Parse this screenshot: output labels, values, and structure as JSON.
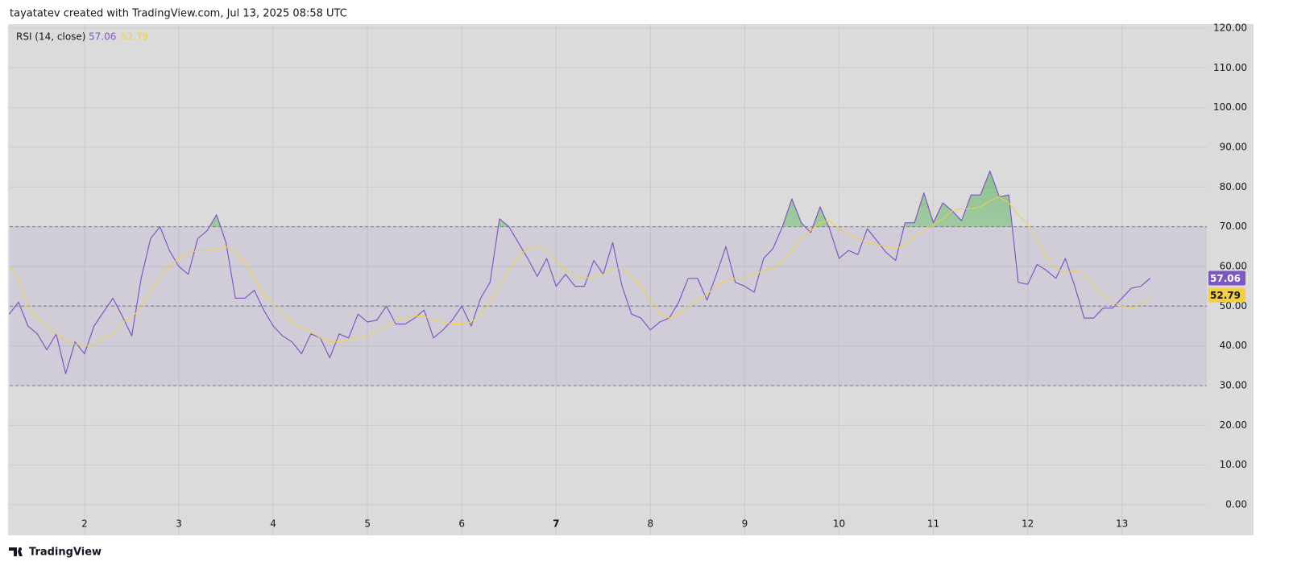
{
  "header": "tayatatev created with TradingView.com, Jul 13, 2025 08:58 UTC",
  "footer": "TradingView",
  "chart_data": {
    "type": "line",
    "legend_title": "RSI (14, close)",
    "x": [
      1.2,
      1.3,
      1.4,
      1.5,
      1.6,
      1.7,
      1.8,
      1.9,
      2.0,
      2.1,
      2.2,
      2.3,
      2.4,
      2.5,
      2.6,
      2.7,
      2.8,
      2.9,
      3.0,
      3.1,
      3.2,
      3.3,
      3.4,
      3.5,
      3.6,
      3.7,
      3.8,
      3.9,
      4.0,
      4.1,
      4.2,
      4.3,
      4.4,
      4.5,
      4.6,
      4.7,
      4.8,
      4.9,
      5.0,
      5.1,
      5.2,
      5.3,
      5.4,
      5.5,
      5.6,
      5.7,
      5.8,
      5.9,
      6.0,
      6.1,
      6.2,
      6.3,
      6.4,
      6.5,
      6.6,
      6.7,
      6.8,
      6.9,
      7.0,
      7.1,
      7.2,
      7.3,
      7.4,
      7.5,
      7.6,
      7.7,
      7.8,
      7.9,
      8.0,
      8.1,
      8.2,
      8.3,
      8.4,
      8.5,
      8.6,
      8.7,
      8.8,
      8.9,
      9.0,
      9.1,
      9.2,
      9.3,
      9.4,
      9.5,
      9.6,
      9.7,
      9.8,
      9.9,
      10.0,
      10.1,
      10.2,
      10.3,
      10.4,
      10.5,
      10.6,
      10.7,
      10.8,
      10.9,
      11.0,
      11.1,
      11.2,
      11.3,
      11.4,
      11.5,
      11.6,
      11.7,
      11.8,
      11.9,
      12.0,
      12.1,
      12.2,
      12.3,
      12.4,
      12.5,
      12.6,
      12.7,
      12.8,
      12.9,
      13.0,
      13.1,
      13.2,
      13.3
    ],
    "series": [
      {
        "color": "#7e57c2",
        "values": [
          48,
          51,
          45,
          43,
          39,
          43,
          33,
          41,
          38,
          45,
          48.5,
          52,
          47.5,
          42.5,
          57,
          67,
          70,
          64,
          60,
          58,
          67,
          69,
          73,
          66,
          52,
          52,
          54,
          49,
          45,
          42.5,
          41,
          38,
          43,
          42,
          37,
          43,
          42,
          48,
          46,
          46.5,
          50,
          45.5,
          45.5,
          47,
          49,
          42,
          44,
          46.5,
          50,
          45,
          52,
          56,
          72,
          70,
          66,
          62,
          57.5,
          62,
          55,
          58,
          55,
          55,
          61.5,
          58,
          66,
          55,
          48,
          47,
          44,
          46,
          47,
          51,
          57,
          57,
          51.5,
          58,
          65,
          56,
          55,
          53.5,
          62,
          64.5,
          70,
          77,
          71,
          68.5,
          75,
          69.5,
          62,
          64,
          63,
          69.5,
          66.5,
          63.5,
          61.5,
          71,
          71,
          78.5,
          71,
          76,
          74,
          71.5,
          78,
          78,
          84,
          77.5,
          78,
          56,
          55.5,
          60.5,
          59,
          57,
          62,
          55,
          47,
          47,
          49.5,
          49.5,
          52,
          54.5,
          55,
          57.06
        ]
      },
      {
        "color": "#f4d03f",
        "values": [
          60,
          57,
          50,
          47,
          45,
          43,
          41.5,
          40.5,
          40,
          40.5,
          42,
          43,
          46,
          47,
          50,
          54,
          57.5,
          60,
          62,
          63.5,
          64,
          64,
          64.5,
          65,
          63.5,
          61,
          57,
          53,
          50.5,
          48,
          46,
          44.5,
          43.5,
          42,
          41,
          41,
          41.5,
          42,
          42.5,
          43.5,
          45,
          46.5,
          47,
          47.5,
          47.5,
          46.5,
          46,
          45.5,
          45.5,
          46,
          48,
          51,
          55,
          59,
          62.5,
          64.5,
          65,
          64,
          61.5,
          59,
          57.5,
          57,
          57.5,
          58,
          59.5,
          59.5,
          57.5,
          55,
          51.5,
          48,
          47,
          48,
          50,
          51.5,
          53,
          55,
          56.5,
          57,
          57,
          58,
          59,
          59.5,
          61,
          64,
          67,
          69,
          71,
          71.5,
          69.5,
          68,
          67,
          66,
          65.5,
          65,
          64.5,
          65.5,
          67.5,
          69,
          70.5,
          72,
          74,
          74.5,
          74.5,
          75,
          76.5,
          77.5,
          76,
          73,
          70.5,
          66.5,
          62.5,
          59.5,
          58.5,
          59,
          58,
          55,
          53,
          51,
          50,
          49.5,
          50.5,
          52.79
        ]
      }
    ],
    "bands": {
      "upper": 70,
      "middle": 50,
      "lower": 30
    },
    "xlim": [
      1.206,
      13.9
    ],
    "xticks": [
      2,
      3,
      4,
      5,
      6,
      7,
      8,
      9,
      10,
      11,
      12,
      13
    ],
    "ylim": [
      -7.7,
      121
    ],
    "yticks": [
      {
        "value": 0,
        "label": "0.00"
      },
      {
        "value": 10,
        "label": "10.00"
      },
      {
        "value": 20,
        "label": "20.00"
      },
      {
        "value": 30,
        "label": "30.00"
      },
      {
        "value": 40,
        "label": "40.00"
      },
      {
        "value": 50,
        "label": "50.00"
      },
      {
        "value": 60,
        "label": "60.00"
      },
      {
        "value": 70,
        "label": "70.00"
      },
      {
        "value": 80,
        "label": "80.00"
      },
      {
        "value": 90,
        "label": "90.00"
      },
      {
        "value": 100,
        "label": "100.00"
      },
      {
        "value": 110,
        "label": "110.00"
      },
      {
        "value": 120,
        "label": "120.00"
      }
    ],
    "grid": true
  }
}
